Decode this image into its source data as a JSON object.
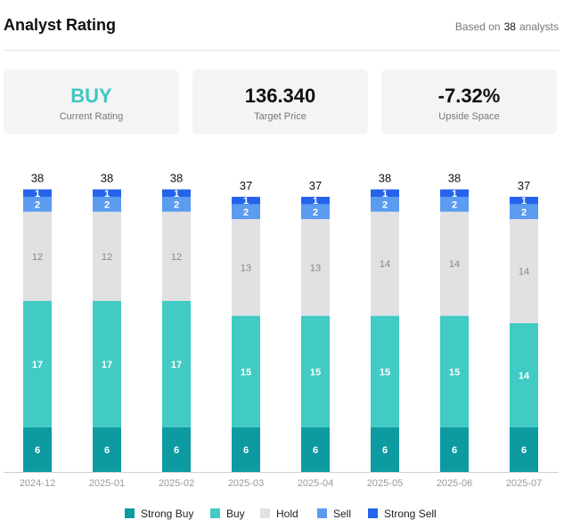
{
  "header": {
    "title": "Analyst Rating",
    "based_prefix": "Based on",
    "based_count": "38",
    "based_suffix": "analysts"
  },
  "cards": [
    {
      "value": "BUY",
      "label": "Current Rating"
    },
    {
      "value": "136.340",
      "label": "Target Price"
    },
    {
      "value": "-7.32%",
      "label": "Upside Space"
    }
  ],
  "colors": {
    "strong_buy": "#0d9aa1",
    "buy": "#41cbc4",
    "hold": "#e1e1e3",
    "sell": "#5b9bf0",
    "strong_sell": "#2563eb",
    "accent": "#3dc7c0"
  },
  "chart_data": {
    "type": "bar",
    "stacked": true,
    "categories": [
      "2024-12",
      "2025-01",
      "2025-02",
      "2025-03",
      "2025-04",
      "2025-05",
      "2025-06",
      "2025-07"
    ],
    "totals": [
      38,
      38,
      38,
      37,
      37,
      38,
      38,
      37
    ],
    "series": [
      {
        "name": "Strong Buy",
        "color": "#0d9aa1",
        "values": [
          6,
          6,
          6,
          6,
          6,
          6,
          6,
          6
        ]
      },
      {
        "name": "Buy",
        "color": "#41cbc4",
        "values": [
          17,
          17,
          17,
          15,
          15,
          15,
          15,
          14
        ]
      },
      {
        "name": "Hold",
        "color": "#e1e1e3",
        "values": [
          12,
          12,
          12,
          13,
          13,
          14,
          14,
          14
        ]
      },
      {
        "name": "Sell",
        "color": "#5b9bf0",
        "values": [
          2,
          2,
          2,
          2,
          2,
          2,
          2,
          2
        ]
      },
      {
        "name": "Strong Sell",
        "color": "#2563eb",
        "values": [
          1,
          1,
          1,
          1,
          1,
          1,
          1,
          1
        ]
      }
    ],
    "legend_position": "bottom",
    "grid": false
  }
}
